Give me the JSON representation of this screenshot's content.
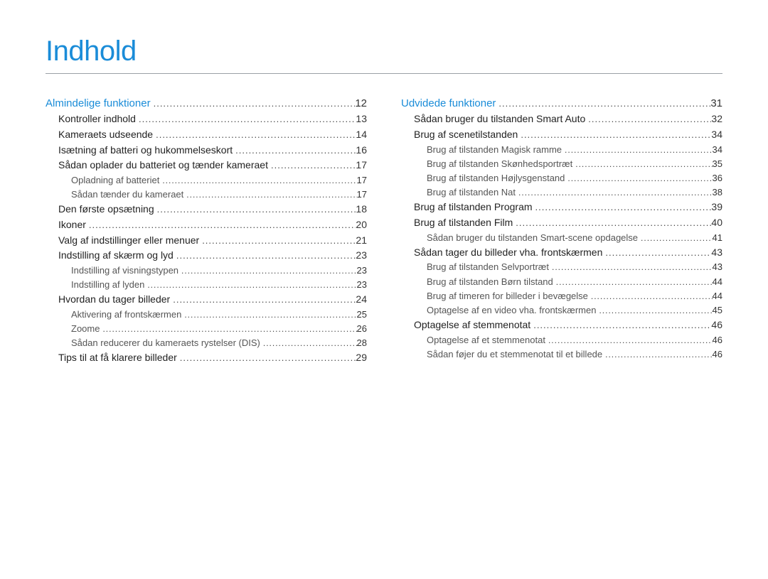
{
  "title": "Indhold",
  "colors": {
    "accent": "#1a8cd8",
    "text": "#222222",
    "sub": "#555555",
    "rule": "#9aa0a6",
    "bg": "#ffffff"
  },
  "typography": {
    "title_fontsize": 40,
    "body_fontsize": 14,
    "sub_fontsize": 13
  },
  "left": [
    {
      "level": 0,
      "label": "Almindelige funktioner",
      "page": "12"
    },
    {
      "level": 1,
      "label": "Kontroller indhold",
      "page": "13"
    },
    {
      "level": 1,
      "label": "Kameraets udseende",
      "page": "14"
    },
    {
      "level": 1,
      "label": "Isætning af batteri og hukommelseskort",
      "page": "16"
    },
    {
      "level": 1,
      "label": "Sådan oplader du batteriet og tænder kameraet",
      "page": "17"
    },
    {
      "level": 2,
      "label": "Opladning af batteriet",
      "page": "17"
    },
    {
      "level": 2,
      "label": "Sådan tænder du kameraet",
      "page": "17"
    },
    {
      "level": 1,
      "label": "Den første opsætning",
      "page": "18"
    },
    {
      "level": 1,
      "label": "Ikoner",
      "page": "20"
    },
    {
      "level": 1,
      "label": "Valg af indstillinger eller menuer",
      "page": "21"
    },
    {
      "level": 1,
      "label": "Indstilling af skærm og lyd",
      "page": "23"
    },
    {
      "level": 2,
      "label": "Indstilling af visningstypen",
      "page": "23"
    },
    {
      "level": 2,
      "label": "Indstilling af lyden",
      "page": "23"
    },
    {
      "level": 1,
      "label": "Hvordan du tager billeder",
      "page": "24"
    },
    {
      "level": 2,
      "label": "Aktivering af frontskærmen",
      "page": "25"
    },
    {
      "level": 2,
      "label": "Zoome",
      "page": "26"
    },
    {
      "level": 2,
      "label": "Sådan reducerer du kameraets rystelser (DIS)",
      "page": "28"
    },
    {
      "level": 1,
      "label": "Tips til at få klarere billeder",
      "page": "29"
    }
  ],
  "right": [
    {
      "level": 0,
      "label": "Udvidede funktioner",
      "page": "31"
    },
    {
      "level": 1,
      "label": "Sådan bruger du tilstanden Smart Auto",
      "page": "32"
    },
    {
      "level": 1,
      "label": "Brug af scenetilstanden",
      "page": "34"
    },
    {
      "level": 2,
      "label": "Brug af tilstanden Magisk ramme",
      "page": "34"
    },
    {
      "level": 2,
      "label": "Brug af tilstanden Skønhedsportræt",
      "page": "35"
    },
    {
      "level": 2,
      "label": "Brug af tilstanden Højlysgenstand",
      "page": "36"
    },
    {
      "level": 2,
      "label": "Brug af tilstanden Nat",
      "page": "38"
    },
    {
      "level": 1,
      "label": "Brug af tilstanden Program",
      "page": "39"
    },
    {
      "level": 1,
      "label": "Brug af tilstanden Film",
      "page": "40"
    },
    {
      "level": 2,
      "label": "Sådan bruger du tilstanden Smart-scene opdagelse",
      "page": "41"
    },
    {
      "level": 1,
      "label": "Sådan tager du billeder vha. frontskærmen",
      "page": "43"
    },
    {
      "level": 2,
      "label": "Brug af tilstanden Selvportræt",
      "page": "43"
    },
    {
      "level": 2,
      "label": "Brug af tilstanden Børn tilstand",
      "page": "44"
    },
    {
      "level": 2,
      "label": "Brug af timeren for billeder i bevægelse",
      "page": "44"
    },
    {
      "level": 2,
      "label": "Optagelse af en video vha. frontskærmen",
      "page": "45"
    },
    {
      "level": 1,
      "label": "Optagelse af stemmenotat",
      "page": "46"
    },
    {
      "level": 2,
      "label": "Optagelse af et stemmenotat",
      "page": "46"
    },
    {
      "level": 2,
      "label": "Sådan føjer du et stemmenotat til et billede",
      "page": "46"
    }
  ]
}
